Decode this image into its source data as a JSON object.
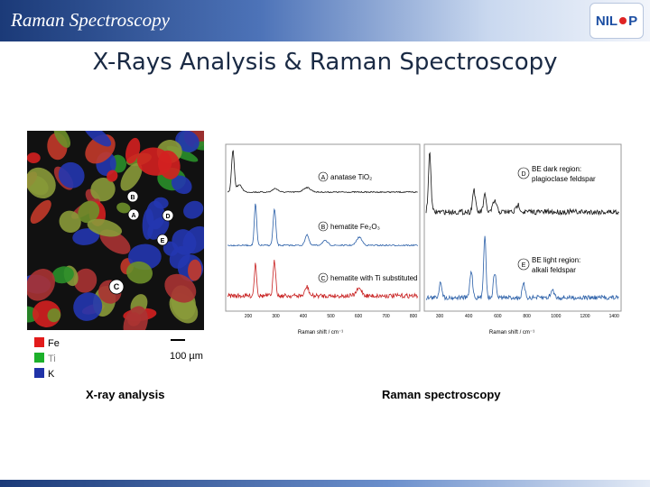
{
  "header": {
    "title": "Raman Spectroscopy",
    "logo": [
      "NIL",
      "P"
    ]
  },
  "slide_title": "X-Rays Analysis & Raman Spectroscopy",
  "xray": {
    "markers": [
      "B",
      "A",
      "D",
      "E",
      "C"
    ],
    "legend": [
      "Fe",
      "Ti",
      "K"
    ],
    "scale": "100 µm",
    "caption": "X-ray analysis"
  },
  "raman": {
    "left_labels": [
      {
        "letter": "A",
        "text": "anatase TiO₂"
      },
      {
        "letter": "B",
        "text": "hematite Fe₂O₃"
      },
      {
        "letter": "C",
        "text": "hematite with Ti substituted"
      }
    ],
    "right_labels": [
      {
        "letter": "D",
        "lines": [
          "BE dark region:",
          "plagioclase feldspar"
        ]
      },
      {
        "letter": "E",
        "lines": [
          "BE light region:",
          "alkali feldspar"
        ]
      }
    ],
    "left_ticks": [
      "200",
      "300",
      "400",
      "500",
      "600",
      "700",
      "800"
    ],
    "right_ticks": [
      "300",
      "400",
      "600",
      "800",
      "1000",
      "1200",
      "1400"
    ],
    "axis_label": "Raman shift / cm⁻¹",
    "caption": "Raman spectroscopy"
  }
}
